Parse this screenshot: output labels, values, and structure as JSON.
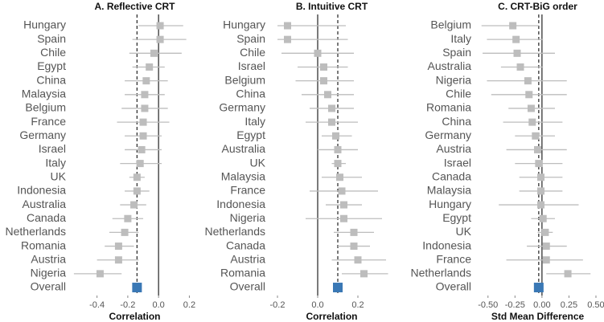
{
  "chart_data": [
    {
      "type": "forest",
      "title": "A. Reflective CRT",
      "xlabel": "Correlation",
      "categories": [
        "Hungary",
        "Spain",
        "Chile",
        "Egypt",
        "China",
        "Malaysia",
        "Belgium",
        "France",
        "Germany",
        "Israel",
        "Italy",
        "UK",
        "Indonesia",
        "Australia",
        "Canada",
        "Netherlands",
        "Romania",
        "Austria",
        "Nigeria",
        "Overall"
      ],
      "values": [
        0.01,
        0.01,
        -0.03,
        -0.06,
        -0.08,
        -0.09,
        -0.09,
        -0.1,
        -0.1,
        -0.11,
        -0.12,
        -0.14,
        -0.14,
        -0.16,
        -0.2,
        -0.22,
        -0.26,
        -0.26,
        -0.38,
        -0.14
      ],
      "ci_low": [
        -0.13,
        -0.17,
        -0.19,
        -0.17,
        -0.22,
        -0.22,
        -0.24,
        -0.27,
        -0.22,
        -0.22,
        -0.25,
        -0.19,
        -0.22,
        -0.25,
        -0.3,
        -0.32,
        -0.35,
        -0.4,
        -0.55,
        -0.16
      ],
      "ci_high": [
        0.16,
        0.18,
        0.15,
        0.04,
        0.06,
        0.04,
        0.06,
        0.07,
        0.02,
        0.02,
        0.02,
        -0.09,
        -0.06,
        -0.08,
        -0.1,
        -0.13,
        -0.16,
        -0.13,
        -0.24,
        -0.12
      ],
      "xlim": [
        -0.56,
        0.25
      ],
      "xticks": [
        -0.4,
        -0.2,
        {
          "value": 0,
          "label": "0.0"
        },
        0.2
      ],
      "color": "#bdbdbd",
      "summary_color": "#3a78b5"
    },
    {
      "type": "forest",
      "title": "B. Intuitive CRT",
      "xlabel": "Correlation",
      "categories": [
        "Hungary",
        "Spain",
        "Chile",
        "Israel",
        "Belgium",
        "China",
        "Germany",
        "Italy",
        "Egypt",
        "Australia",
        "UK",
        "Malaysia",
        "France",
        "Indonesia",
        "Nigeria",
        "Netherlands",
        "Canada",
        "Austria",
        "Romania",
        "Overall"
      ],
      "values": [
        -0.15,
        -0.15,
        0.0,
        0.03,
        0.03,
        0.05,
        0.07,
        0.07,
        0.09,
        0.1,
        0.1,
        0.11,
        0.12,
        0.13,
        0.13,
        0.18,
        0.18,
        0.2,
        0.23,
        0.1
      ],
      "ci_low": [
        -0.2,
        -0.2,
        -0.18,
        -0.1,
        -0.11,
        -0.08,
        -0.04,
        -0.06,
        0.02,
        0.0,
        0.07,
        0.02,
        -0.04,
        0.04,
        -0.06,
        0.08,
        0.1,
        0.07,
        0.12,
        0.08
      ],
      "ci_high": [
        0.14,
        0.15,
        0.18,
        0.15,
        0.18,
        0.18,
        0.18,
        0.2,
        0.17,
        0.2,
        0.14,
        0.22,
        0.3,
        0.22,
        0.32,
        0.28,
        0.26,
        0.34,
        0.35,
        0.12
      ],
      "xlim": [
        -0.24,
        0.38
      ],
      "xticks": [
        -0.2,
        {
          "value": 0,
          "label": "0.0"
        },
        0.2
      ],
      "color": "#bdbdbd",
      "summary_color": "#3a78b5"
    },
    {
      "type": "forest",
      "title": "C. CRT-BiG order",
      "xlabel": "Std Mean Difference",
      "categories": [
        "Belgium",
        "Italy",
        "Spain",
        "Australia",
        "Nigeria",
        "Chile",
        "Romania",
        "China",
        "Germany",
        "Austria",
        "Israel",
        "Canada",
        "Malaysia",
        "Hungary",
        "Egypt",
        "UK",
        "Indonesia",
        "France",
        "Netherlands",
        "Overall"
      ],
      "values": [
        -0.27,
        -0.24,
        -0.23,
        -0.2,
        -0.13,
        -0.12,
        -0.1,
        -0.09,
        -0.06,
        -0.04,
        -0.03,
        -0.01,
        -0.01,
        -0.01,
        0.01,
        0.03,
        0.04,
        0.04,
        0.24,
        -0.03
      ],
      "ci_low": [
        -0.56,
        -0.51,
        -0.55,
        -0.38,
        -0.51,
        -0.47,
        -0.31,
        -0.36,
        -0.25,
        -0.33,
        -0.25,
        -0.21,
        -0.21,
        -0.4,
        -0.1,
        -0.04,
        -0.14,
        -0.33,
        0.04,
        -0.06
      ],
      "ci_high": [
        -0.03,
        0.01,
        0.12,
        0.01,
        0.23,
        0.23,
        0.12,
        0.19,
        0.12,
        0.23,
        0.19,
        0.19,
        0.19,
        0.34,
        0.12,
        0.1,
        0.23,
        0.38,
        0.45,
        0.0
      ],
      "xlim": [
        -0.61,
        0.53
      ],
      "xticks": [
        {
          "value": -0.5,
          "label": "-0.50"
        },
        {
          "value": -0.25,
          "label": "-0.25"
        },
        {
          "value": 0,
          "label": "0.00"
        },
        {
          "value": 0.25,
          "label": "0.25"
        },
        {
          "value": 0.5,
          "label": "0.50"
        }
      ],
      "color": "#bdbdbd",
      "summary_color": "#3a78b5"
    }
  ]
}
